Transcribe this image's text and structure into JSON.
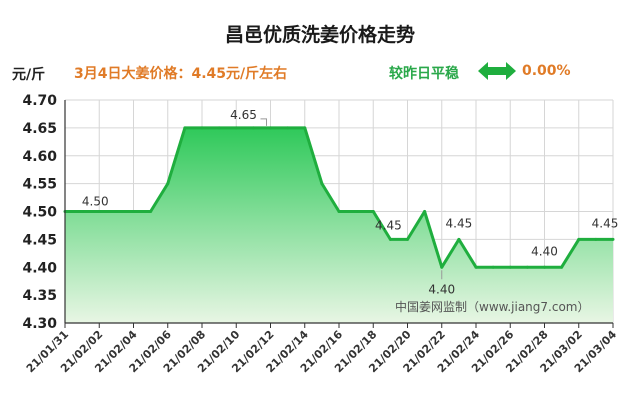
{
  "header": {
    "title": "昌邑优质洗姜价格走势",
    "unit": "元/斤",
    "price_note": "3月4日大姜价格：4.45元/斤左右",
    "trend_label": "较昨日平稳",
    "trend_value": "0.00%"
  },
  "colors": {
    "line": "#1fae3e",
    "fill_top": "#2fc95a",
    "fill_bottom": "#e8f6e4",
    "accent_orange": "#e07b27",
    "accent_green": "#2aa84a"
  },
  "watermark": "中国姜网监制（www.jiang7.com）",
  "chart_data": {
    "type": "area",
    "x": [
      "21/01/31",
      "21/02/01",
      "21/02/02",
      "21/02/03",
      "21/02/04",
      "21/02/05",
      "21/02/06",
      "21/02/07",
      "21/02/08",
      "21/02/09",
      "21/02/10",
      "21/02/11",
      "21/02/12",
      "21/02/13",
      "21/02/14",
      "21/02/15",
      "21/02/16",
      "21/02/17",
      "21/02/18",
      "21/02/19",
      "21/02/20",
      "21/02/21",
      "21/02/22",
      "21/02/23",
      "21/02/24",
      "21/02/25",
      "21/02/26",
      "21/02/27",
      "21/02/28",
      "21/03/01",
      "21/03/02",
      "21/03/03",
      "21/03/04"
    ],
    "values": [
      4.5,
      4.5,
      4.5,
      4.5,
      4.5,
      4.5,
      4.55,
      4.65,
      4.65,
      4.65,
      4.65,
      4.65,
      4.65,
      4.65,
      4.65,
      4.55,
      4.5,
      4.5,
      4.5,
      4.45,
      4.45,
      4.5,
      4.4,
      4.45,
      4.4,
      4.4,
      4.4,
      4.4,
      4.4,
      4.4,
      4.45,
      4.45,
      4.45
    ],
    "tick_labels": [
      "21/01/31",
      "21/02/02",
      "21/02/04",
      "21/02/06",
      "21/02/08",
      "21/02/10",
      "21/02/12",
      "21/02/14",
      "21/02/16",
      "21/02/18",
      "21/02/20",
      "21/02/22",
      "21/02/24",
      "21/02/26",
      "21/02/28",
      "21/03/02",
      "21/03/04"
    ],
    "yticks": [
      "4.70",
      "4.65",
      "4.60",
      "4.55",
      "4.50",
      "4.45",
      "4.40",
      "4.35",
      "4.30"
    ],
    "ylim": [
      4.3,
      4.7
    ],
    "data_labels": [
      {
        "index": 2,
        "text": "4.50"
      },
      {
        "index": 12,
        "text": "4.65"
      },
      {
        "index": 19,
        "text": "4.45"
      },
      {
        "index": 22,
        "text": "4.40"
      },
      {
        "index": 23,
        "text": "4.45"
      },
      {
        "index": 28,
        "text": "4.40"
      },
      {
        "index": 32,
        "text": "4.45"
      }
    ],
    "grid": true
  }
}
